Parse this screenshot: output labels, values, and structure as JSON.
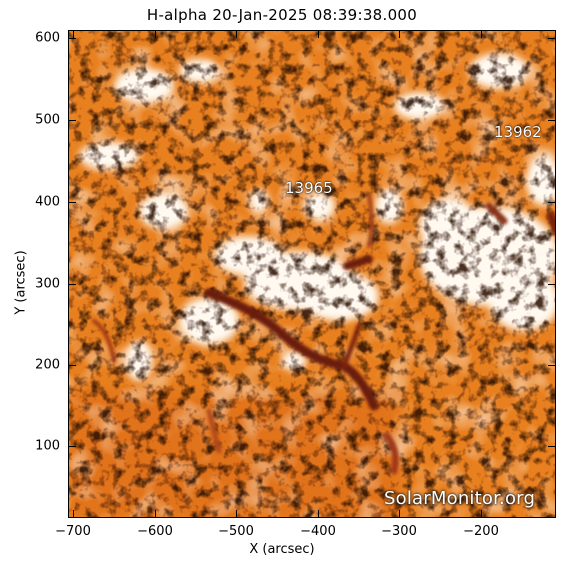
{
  "title": "H-alpha 20-Jan-2025 08:39:38.000",
  "axes": {
    "xlabel": "X (arcsec)",
    "ylabel": "Y (arcsec)",
    "x_ticks": [
      "−700",
      "−600",
      "−500",
      "−400",
      "−300",
      "−200"
    ],
    "y_ticks": [
      "100",
      "200",
      "300",
      "400",
      "500",
      "600"
    ],
    "x_range": [
      -703,
      -112
    ],
    "y_range": [
      10,
      612
    ]
  },
  "active_regions": [
    {
      "id": "13965",
      "x_arcsec": -410,
      "y_arcsec": 415
    },
    {
      "id": "13962",
      "x_arcsec": -170,
      "y_arcsec": 487
    }
  ],
  "watermark": "SolarMonitor.org",
  "colors": {
    "base": "#e87d1f",
    "bright": "#fff8ec",
    "dark_filament": "#6b1a08"
  }
}
